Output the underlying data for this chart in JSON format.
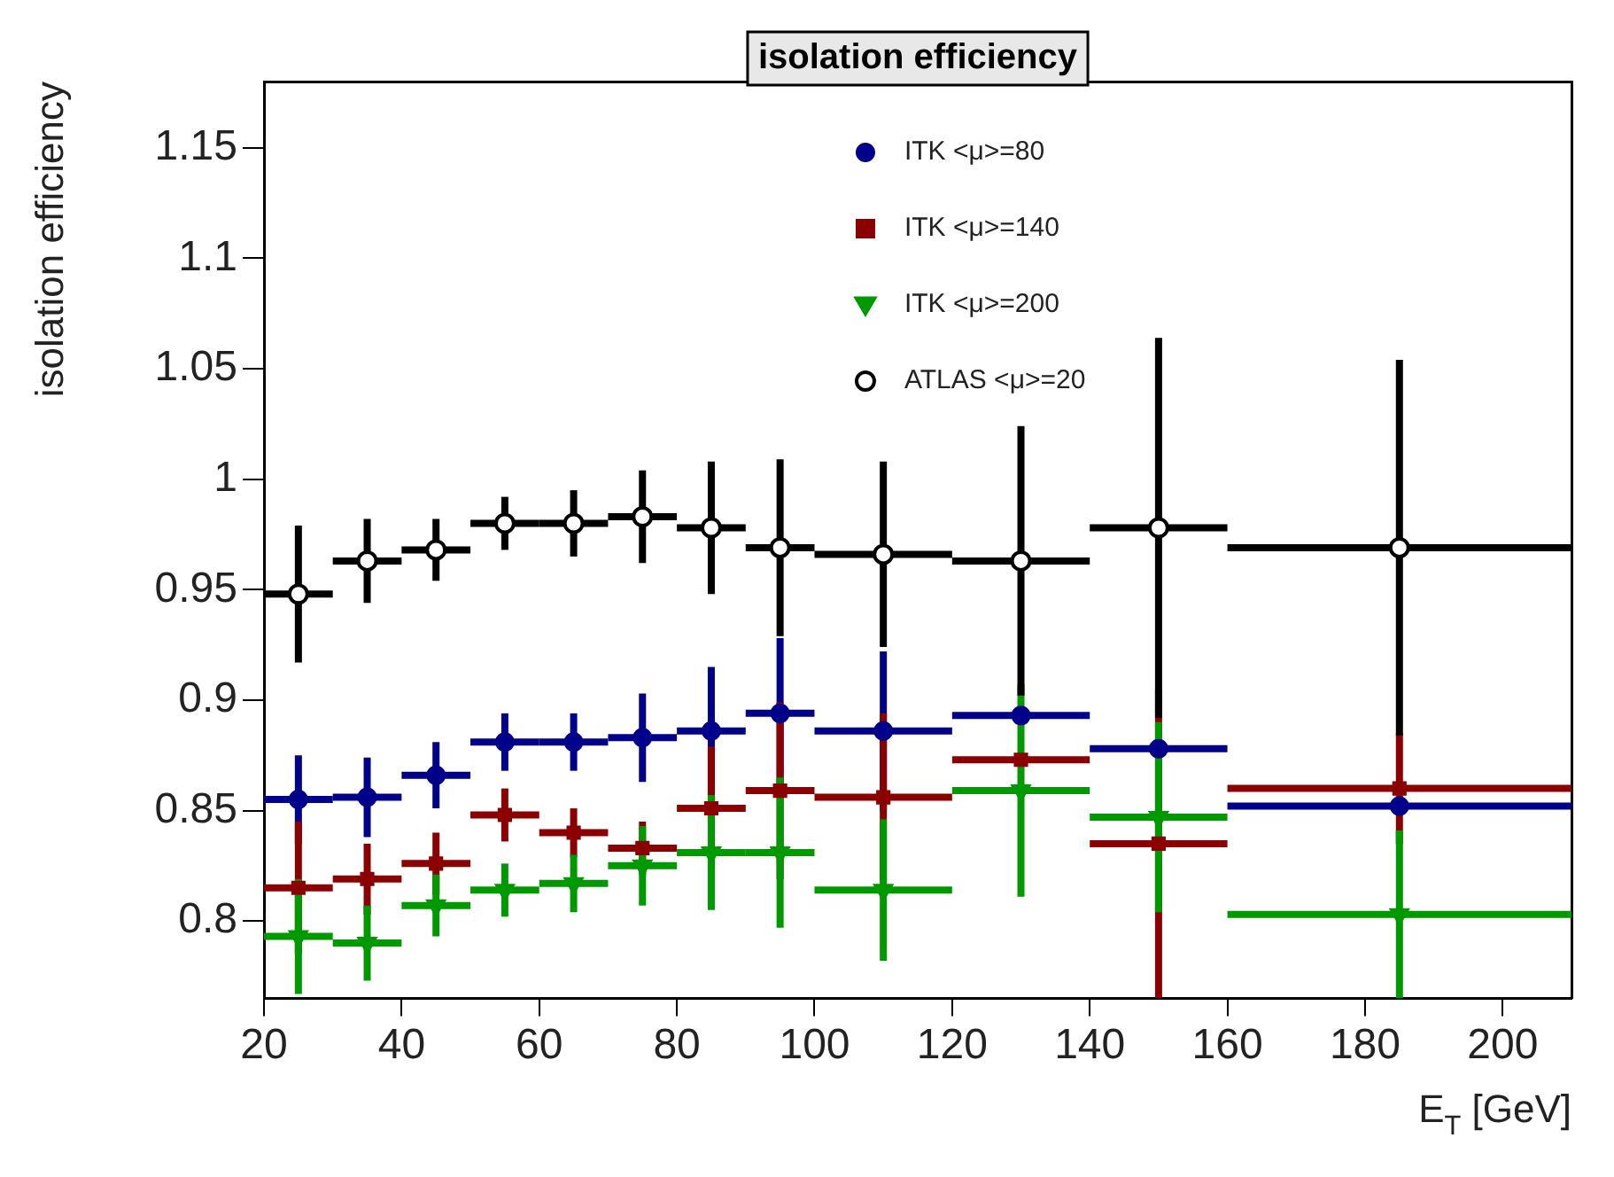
{
  "chart_data": {
    "type": "scatter",
    "title": "isolation efficiency",
    "xlabel": "E$_{T}$ [GeV]",
    "ylabel": "isolation efficiency",
    "xlim": [
      20,
      210
    ],
    "xticks": [
      20,
      40,
      60,
      80,
      100,
      120,
      140,
      160,
      180,
      200
    ],
    "ylim": [
      0.765,
      1.18
    ],
    "yticks": [
      0.8,
      0.85,
      0.9,
      0.95,
      1,
      1.05,
      1.1,
      1.15
    ],
    "grid": false,
    "legend": "top",
    "x": [
      25,
      35,
      45,
      55,
      65,
      75,
      85,
      95,
      110,
      130,
      150,
      185
    ],
    "series": [
      {
        "name": "ITK <μ>=80",
        "color": "#00008b",
        "marker": "circle",
        "values": [
          0.855,
          0.856,
          0.866,
          0.881,
          0.881,
          0.883,
          0.886,
          0.894,
          0.886,
          0.893,
          0.878,
          0.852
        ],
        "errors": [
          0.02,
          0.018,
          0.015,
          0.013,
          0.013,
          0.02,
          0.029,
          0.034,
          0.036,
          null,
          null,
          null
        ],
        "xerrors": [
          5,
          5,
          5,
          5,
          5,
          5,
          5,
          5,
          10,
          10,
          10,
          25
        ]
      },
      {
        "name": "ITK <μ>=140",
        "color": "#8b0000",
        "marker": "square",
        "values": [
          0.815,
          0.819,
          0.826,
          0.848,
          0.84,
          0.833,
          0.851,
          0.859,
          0.856,
          0.873,
          0.835,
          0.86
        ],
        "errors": [
          0.03,
          0.016,
          0.014,
          0.012,
          0.011,
          0.012,
          0.028,
          0.04,
          0.038,
          null,
          0.07,
          0.025
        ],
        "xerrors": [
          5,
          5,
          5,
          5,
          5,
          5,
          5,
          5,
          10,
          10,
          10,
          25
        ]
      },
      {
        "name": "ITK <μ>=200",
        "color": "#009900",
        "marker": "triangle",
        "values": [
          0.793,
          0.79,
          0.807,
          0.814,
          0.817,
          0.825,
          0.831,
          0.831,
          0.814,
          0.859,
          0.847,
          0.803
        ],
        "errors": [
          0.026,
          0.017,
          0.014,
          0.012,
          0.013,
          0.018,
          0.026,
          0.034,
          0.032,
          0.048,
          0.043,
          0.038
        ],
        "xerrors": [
          5,
          5,
          5,
          5,
          5,
          5,
          5,
          5,
          10,
          10,
          10,
          25
        ]
      },
      {
        "name": "ATLAS <μ>=20",
        "color": "#000000",
        "marker": "circle",
        "values": [
          0.948,
          0.963,
          0.968,
          0.98,
          0.98,
          0.983,
          0.978,
          0.969,
          0.966,
          0.963,
          0.978,
          0.969
        ],
        "errors": [
          0.031,
          0.019,
          0.014,
          0.012,
          0.015,
          0.021,
          0.03,
          0.04,
          0.042,
          0.061,
          0.086,
          0.085
        ],
        "xerrors": [
          5,
          5,
          5,
          5,
          5,
          5,
          5,
          5,
          10,
          10,
          10,
          25
        ]
      }
    ]
  }
}
